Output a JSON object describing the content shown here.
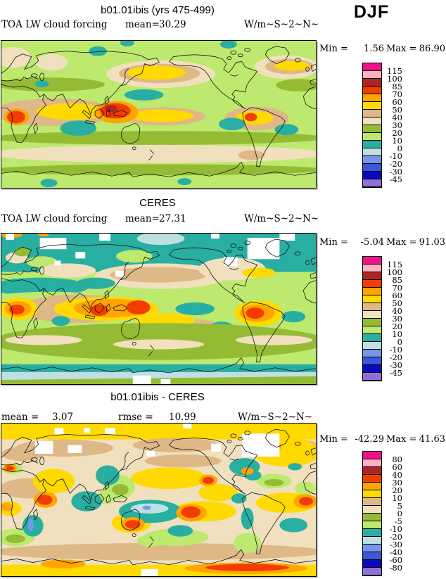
{
  "season": "DJF",
  "colorbar": {
    "colors": [
      "#F2108C",
      "#FFB0C2",
      "#AD2424",
      "#F23D00",
      "#FFA400",
      "#FFD900",
      "#DEB887",
      "#F0E0BE",
      "#95BB35",
      "#BCE96E",
      "#28AFA2",
      "#BEE0E2",
      "#7497EC",
      "#3A57DF",
      "#0909BE",
      "#8E70D6"
    ],
    "full": [
      "115",
      "100",
      "85",
      "70",
      "60",
      "50",
      "40",
      "30",
      "20",
      "10",
      "0",
      "-10",
      "-20",
      "-30",
      "-45"
    ],
    "diff": [
      "80",
      "60",
      "40",
      "30",
      "20",
      "10",
      "5",
      "0",
      "-5",
      "-10",
      "-20",
      "-30",
      "-40",
      "-60",
      "-80"
    ]
  },
  "panels": [
    {
      "title": "b01.01ibis (yrs 475-499)",
      "var_label": "TOA LW cloud forcing",
      "mean_label": "mean=",
      "mean": "30.29",
      "units": "W/m~S~2~N~",
      "min_label": "Min =",
      "min": "1.56",
      "max_label": "Max =",
      "max": "86.90"
    },
    {
      "title": "CERES",
      "var_label": "TOA LW cloud forcing",
      "mean_label": "mean=",
      "mean": "27.31",
      "units": "W/m~S~2~N~",
      "min_label": "Min =",
      "min": "-5.04",
      "max_label": "Max =",
      "max": "91.03"
    },
    {
      "title": "b01.01ibis - CERES",
      "mean_label": "mean =",
      "mean": "3.07",
      "rmse_label": "rmse =",
      "rmse": "10.99",
      "units": "W/m~S~2~N~",
      "min_label": "Min =",
      "min": "-42.29",
      "max_label": "Max =",
      "max": "41.63"
    }
  ],
  "chart_data": [
    {
      "type": "heatmap",
      "title": "b01.01ibis (yrs 475-499)",
      "variable": "TOA LW cloud forcing",
      "season": "DJF",
      "units": "W/m~S~2~N~",
      "projection": "global equirectangular, lon 0-360",
      "stats": {
        "mean": 30.29,
        "min": 1.56,
        "max": 86.9
      },
      "contour_levels": [
        -45,
        -30,
        -20,
        -10,
        0,
        10,
        20,
        30,
        40,
        50,
        60,
        70,
        85,
        100,
        115
      ],
      "legend_position": "right"
    },
    {
      "type": "heatmap",
      "title": "CERES",
      "variable": "TOA LW cloud forcing",
      "season": "DJF",
      "units": "W/m~S~2~N~",
      "projection": "global equirectangular, lon 0-360",
      "stats": {
        "mean": 27.31,
        "min": -5.04,
        "max": 91.03
      },
      "contour_levels": [
        -45,
        -30,
        -20,
        -10,
        0,
        10,
        20,
        30,
        40,
        50,
        60,
        70,
        85,
        100,
        115
      ],
      "legend_position": "right"
    },
    {
      "type": "heatmap",
      "title": "b01.01ibis - CERES",
      "variable": "TOA LW cloud forcing difference",
      "season": "DJF",
      "units": "W/m~S~2~N~",
      "projection": "global equirectangular, lon 0-360",
      "stats": {
        "mean": 3.07,
        "rmse": 10.99,
        "min": -42.29,
        "max": 41.63
      },
      "contour_levels": [
        -80,
        -60,
        -40,
        -30,
        -20,
        -10,
        -5,
        0,
        5,
        10,
        20,
        30,
        40,
        60,
        80
      ],
      "legend_position": "right"
    }
  ]
}
